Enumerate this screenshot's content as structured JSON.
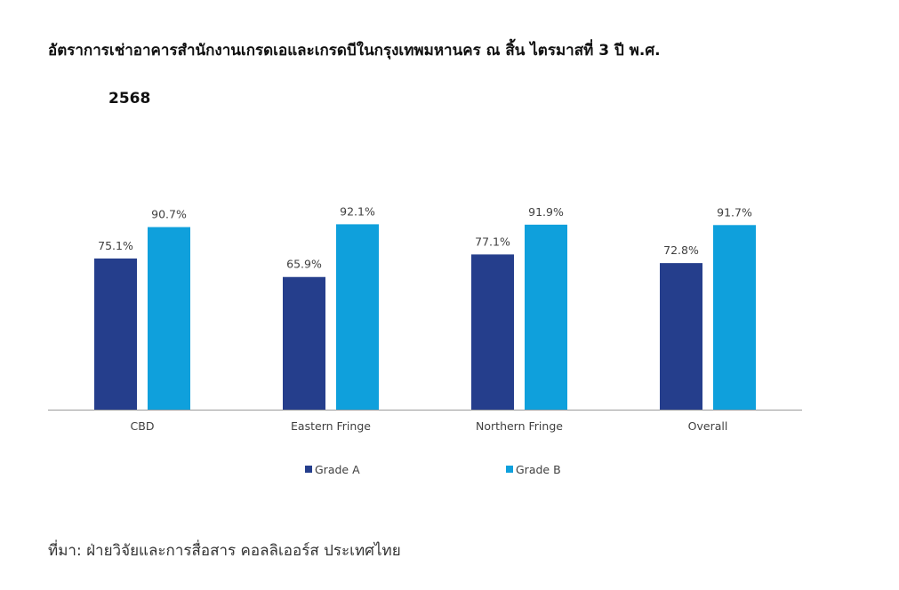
{
  "title": {
    "line1": "อัตราการเช่าอาคารสำนักงานเกรดเอและเกรดบีในกรุงเทพมหานคร  ณ สิ้น ไตรมาสที่ 3 ปี พ.ศ.",
    "line2": "2568"
  },
  "source": "ที่มา: ฝ่ายวิจัยและการสื่อสาร คอลลิเออร์ส ประเทศไทย",
  "chart_data": {
    "type": "bar",
    "categories": [
      "CBD",
      "Eastern Fringe",
      "Northern Fringe",
      "Overall"
    ],
    "series": [
      {
        "name": "Grade A",
        "color": "#253e8c",
        "values": [
          75.1,
          65.9,
          77.1,
          72.8
        ]
      },
      {
        "name": "Grade B",
        "color": "#0fa0dc",
        "values": [
          90.7,
          92.1,
          91.9,
          91.7
        ]
      }
    ],
    "value_suffix": "%",
    "ylim": [
      0,
      100
    ],
    "grid": false,
    "legend": "bottom"
  }
}
